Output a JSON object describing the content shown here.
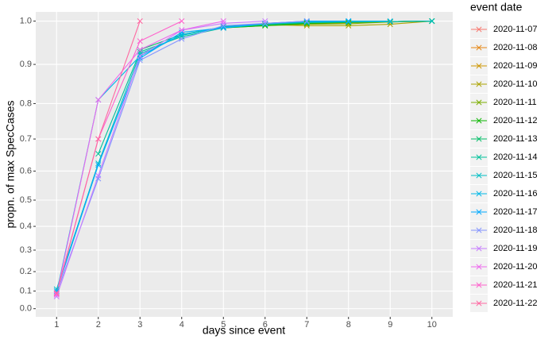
{
  "chart_data": {
    "type": "line",
    "x_label": "days since event",
    "y_label": "propn. of max SpecCases",
    "legend_title": "event date",
    "y_scale": "exp",
    "grid": true,
    "legend": "right",
    "marker": "x",
    "x": [
      1,
      2,
      3,
      4,
      5,
      6,
      7,
      8,
      9,
      10
    ],
    "xlim": [
      0.5,
      10.5
    ],
    "xticks": [
      1,
      2,
      3,
      4,
      5,
      6,
      7,
      8,
      9,
      10
    ],
    "ylim": [
      -0.05,
      1.02
    ],
    "yticks": [
      {
        "value": 0,
        "label": "0.0"
      },
      0.1,
      0.2,
      0.3,
      0.4,
      0.5,
      0.6,
      0.7,
      0.8,
      0.9,
      {
        "value": 1,
        "label": "1.0"
      }
    ],
    "series": [
      {
        "name": "2020-11-07",
        "color": "#F8766D",
        "values": [
          null,
          null,
          null,
          null,
          null,
          null,
          0.995,
          0.998,
          0.999,
          1.0
        ]
      },
      {
        "name": "2020-11-08",
        "color": "#E68613",
        "values": [
          null,
          null,
          null,
          null,
          null,
          null,
          0.996,
          0.998,
          0.999,
          1.0
        ]
      },
      {
        "name": "2020-11-09",
        "color": "#CD9600",
        "values": [
          null,
          null,
          null,
          null,
          null,
          0.993,
          0.994,
          0.996,
          0.998,
          1.0
        ]
      },
      {
        "name": "2020-11-10",
        "color": "#ABA300",
        "values": [
          null,
          null,
          null,
          null,
          null,
          0.992,
          0.99,
          0.99,
          0.993,
          1.0
        ]
      },
      {
        "name": "2020-11-11",
        "color": "#7CAE00",
        "values": [
          null,
          null,
          null,
          null,
          0.985,
          0.99,
          0.993,
          0.994,
          0.998,
          1.0
        ]
      },
      {
        "name": "2020-11-12",
        "color": "#0CB702",
        "values": [
          null,
          null,
          null,
          0.97,
          0.985,
          0.99,
          0.995,
          0.997,
          0.999,
          1.0
        ]
      },
      {
        "name": "2020-11-13",
        "color": "#00BE67",
        "values": [
          null,
          null,
          0.935,
          0.97,
          0.987,
          0.993,
          0.996,
          0.998,
          0.999,
          1.0
        ]
      },
      {
        "name": "2020-11-14",
        "color": "#00C19A",
        "values": [
          null,
          0.655,
          0.93,
          0.965,
          0.985,
          0.992,
          0.997,
          0.998,
          0.999,
          1.0
        ]
      },
      {
        "name": "2020-11-15",
        "color": "#00BFC4",
        "values": [
          0.11,
          0.625,
          0.925,
          0.968,
          0.988,
          0.994,
          0.998,
          0.999,
          0.999,
          1.0
        ]
      },
      {
        "name": "2020-11-16",
        "color": "#00B8E7",
        "values": [
          0.09,
          0.81,
          0.92,
          0.97,
          0.985,
          0.995,
          0.999,
          1.0,
          1.0,
          null
        ]
      },
      {
        "name": "2020-11-17",
        "color": "#00A9FF",
        "values": [
          0.1,
          0.62,
          0.915,
          0.975,
          0.985,
          0.995,
          1.0,
          1.0,
          null,
          null
        ]
      },
      {
        "name": "2020-11-18",
        "color": "#8494FF",
        "values": [
          0.09,
          0.575,
          0.91,
          0.96,
          0.99,
          0.995,
          1.0,
          null,
          null,
          null
        ]
      },
      {
        "name": "2020-11-19",
        "color": "#C77CFF",
        "values": [
          0.07,
          0.585,
          0.92,
          0.98,
          0.995,
          1.0,
          null,
          null,
          null,
          null
        ]
      },
      {
        "name": "2020-11-20",
        "color": "#ED68ED",
        "values": [
          0.08,
          0.81,
          0.935,
          0.98,
          1.0,
          null,
          null,
          null,
          null,
          null
        ]
      },
      {
        "name": "2020-11-21",
        "color": "#FF61CC",
        "values": [
          0.085,
          0.7,
          0.955,
          1.0,
          null,
          null,
          null,
          null,
          null,
          null
        ]
      },
      {
        "name": "2020-11-22",
        "color": "#FF68A1",
        "values": [
          0.09,
          0.7,
          1.0,
          null,
          null,
          null,
          null,
          null,
          null,
          null
        ]
      }
    ]
  }
}
